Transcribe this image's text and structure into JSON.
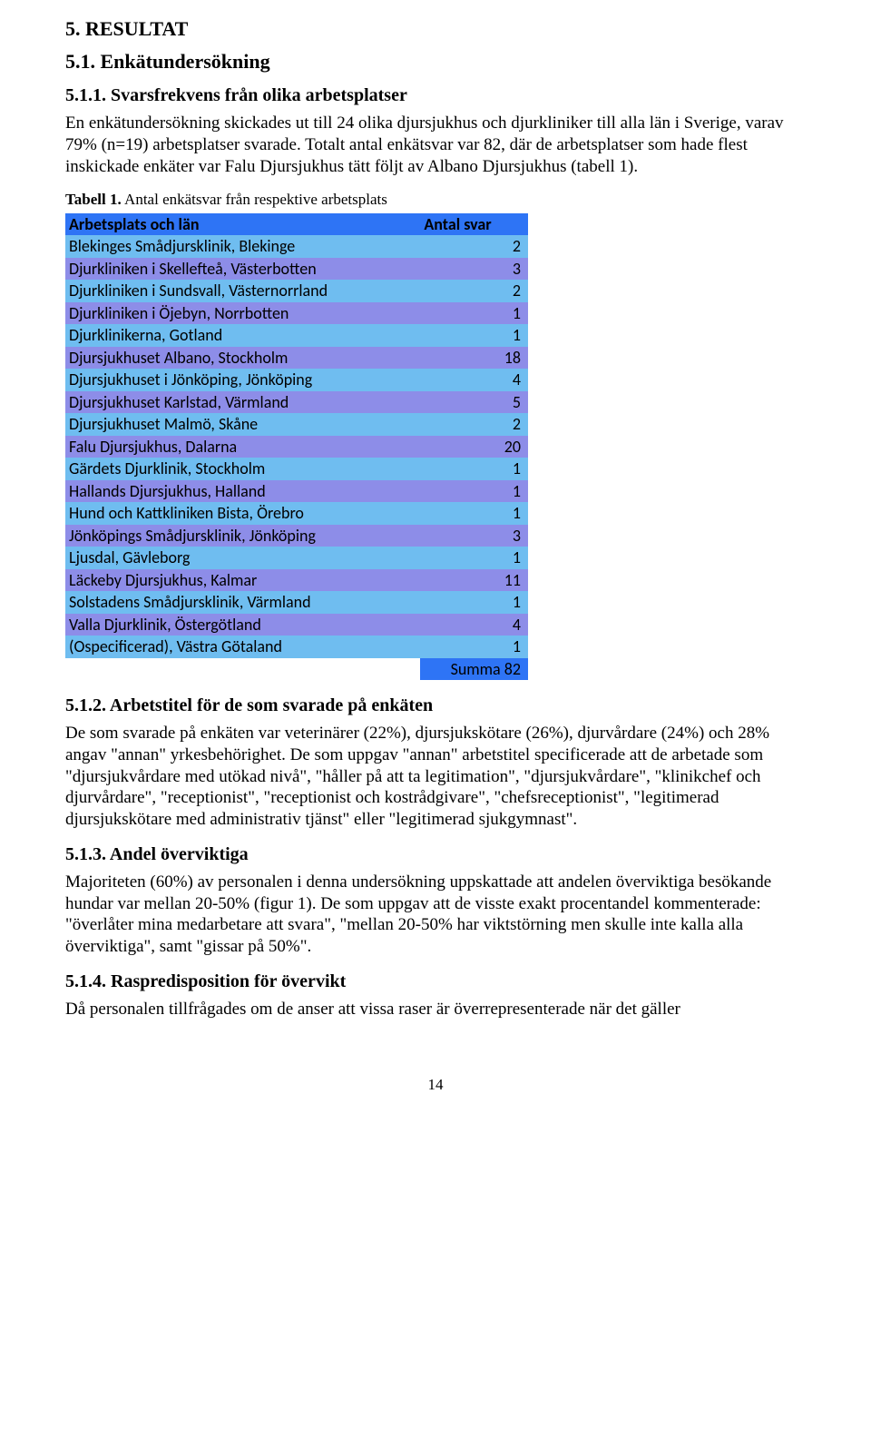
{
  "colors": {
    "header_bg": "#2e74f5",
    "row_a": "#6fbdf0",
    "row_b": "#8d8de8",
    "text": "#000000",
    "page_bg": "#ffffff"
  },
  "section_5": "5. RESULTAT",
  "section_5_1": "5.1. Enkätundersökning",
  "section_5_1_1_heading": "5.1.1. Svarsfrekvens från olika arbetsplatser",
  "para_5_1_1": "En enkätundersökning skickades ut till 24 olika djursjukhus och djurkliniker till alla län i Sverige, varav 79% (n=19) arbetsplatser svarade. Totalt antal enkätsvar var 82, där de arbetsplatser som hade flest inskickade enkäter var Falu Djursjukhus tätt följt av Albano Djursjukhus (tabell 1).",
  "table_caption_lead": "Tabell 1.",
  "table_caption_rest": " Antal enkätsvar från respektive arbetsplats",
  "table": {
    "header_left": "Arbetsplats och län",
    "header_right": "Antal svar",
    "rows": [
      {
        "label": "Blekinges Smådjursklinik, Blekinge",
        "value": 2
      },
      {
        "label": "Djurkliniken i Skellefteå, Västerbotten",
        "value": 3
      },
      {
        "label": "Djurkliniken i Sundsvall, Västernorrland",
        "value": 2
      },
      {
        "label": "Djurkliniken i Öjebyn, Norrbotten",
        "value": 1
      },
      {
        "label": "Djurklinikerna, Gotland",
        "value": 1
      },
      {
        "label": "Djursjukhuset Albano, Stockholm",
        "value": 18
      },
      {
        "label": "Djursjukhuset i Jönköping, Jönköping",
        "value": 4
      },
      {
        "label": "Djursjukhuset Karlstad, Värmland",
        "value": 5
      },
      {
        "label": "Djursjukhuset Malmö, Skåne",
        "value": 2
      },
      {
        "label": "Falu Djursjukhus, Dalarna",
        "value": 20
      },
      {
        "label": "Gärdets Djurklinik, Stockholm",
        "value": 1
      },
      {
        "label": "Hallands Djursjukhus, Halland",
        "value": 1
      },
      {
        "label": "Hund och Kattkliniken Bista, Örebro",
        "value": 1
      },
      {
        "label": "Jönköpings Smådjursklinik, Jönköping",
        "value": 3
      },
      {
        "label": "Ljusdal, Gävleborg",
        "value": 1
      },
      {
        "label": "Läckeby Djursjukhus, Kalmar",
        "value": 11
      },
      {
        "label": "Solstadens Smådjursklinik, Värmland",
        "value": 1
      },
      {
        "label": "Valla Djurklinik, Östergötland",
        "value": 4
      },
      {
        "label": "(Ospecificerad), Västra Götaland",
        "value": 1
      }
    ],
    "sum_label": "Summa",
    "sum_value": 82
  },
  "section_5_1_2_heading": "5.1.2. Arbetstitel för de som svarade på enkäten",
  "para_5_1_2": "De som svarade på enkäten var veterinärer (22%), djursjukskötare (26%), djurvårdare (24%) och 28% angav \"annan\" yrkesbehörighet. De som uppgav \"annan\" arbetstitel specificerade att de arbetade som \"djursjukvårdare med utökad nivå\", \"håller på att ta legitimation\", \"djursjukvårdare\", \"klinikchef och djurvårdare\", \"receptionist\", \"receptionist och kostrådgivare\", \"chefsreceptionist\", \"legitimerad djursjukskötare med administrativ tjänst\" eller \"legitimerad sjukgymnast\".",
  "section_5_1_3_heading": "5.1.3. Andel överviktiga",
  "para_5_1_3": "Majoriteten (60%) av personalen i denna undersökning uppskattade att andelen överviktiga besökande hundar var mellan 20-50% (figur 1). De som uppgav att de visste exakt procentandel kommenterade: \"överlåter mina medarbetare att svara\", \"mellan 20-50% har viktstörning men skulle inte kalla alla överviktiga\", samt \"gissar på 50%\".",
  "section_5_1_4_heading": "5.1.4. Raspredisposition för övervikt",
  "para_5_1_4": "Då personalen tillfrågades om de anser att vissa raser är överrepresenterade när det gäller",
  "page_number": "14"
}
